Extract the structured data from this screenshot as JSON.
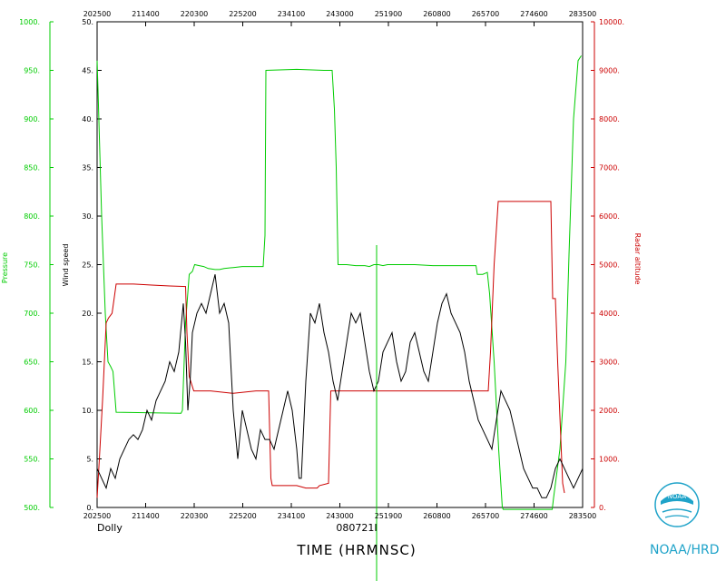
{
  "chart_data": {
    "type": "line",
    "xlabel": "TIME (HRMNSC)",
    "storm_name": "Dolly",
    "flight_id": "080721I",
    "x_ticks_bottom": [
      "202500",
      "211400",
      "220300",
      "225200",
      "234100",
      "243000",
      "251900",
      "260800",
      "265700",
      "274600",
      "283500"
    ],
    "x_ticks_top": [
      "202500",
      "211400",
      "220300",
      "225200",
      "234100",
      "243000",
      "251900",
      "260800",
      "265700",
      "274600",
      "283500"
    ],
    "y_left_inner": {
      "label": "Wind speed",
      "ylim": [
        0,
        50
      ],
      "ticks": [
        "0.",
        "5.",
        "10.",
        "15.",
        "20.",
        "25.",
        "30.",
        "35.",
        "40.",
        "45.",
        "50."
      ]
    },
    "y_left_outer": {
      "label": "Pressure",
      "ylim": [
        500,
        1000
      ],
      "ticks": [
        "500.",
        "550.",
        "600.",
        "650.",
        "700.",
        "750.",
        "800.",
        "850.",
        "900.",
        "950.",
        "1000."
      ]
    },
    "y_right": {
      "label": "Radar altitude",
      "ylim": [
        0,
        10000
      ],
      "ticks": [
        "0.",
        "1000.",
        "2000.",
        "3000.",
        "4000.",
        "5000.",
        "6000.",
        "7000.",
        "8000.",
        "9000.",
        "10000."
      ]
    },
    "series": [
      {
        "name": "Pressure",
        "color": "#00cc00",
        "points": [
          [
            0,
            960
          ],
          [
            0.2,
            930
          ],
          [
            1,
            800
          ],
          [
            1.8,
            700
          ],
          [
            2.4,
            650
          ],
          [
            3,
            645
          ],
          [
            3.5,
            640
          ],
          [
            4.2,
            598
          ],
          [
            18.5,
            597
          ],
          [
            18.8,
            600
          ],
          [
            19.5,
            690
          ],
          [
            20.3,
            740
          ],
          [
            21,
            743
          ],
          [
            21.5,
            750
          ],
          [
            22.5,
            749
          ],
          [
            23.5,
            748
          ],
          [
            24.5,
            746
          ],
          [
            26,
            745
          ],
          [
            27,
            745
          ],
          [
            28,
            746
          ],
          [
            30,
            747
          ],
          [
            32,
            748
          ],
          [
            34,
            748
          ],
          [
            36.6,
            748
          ],
          [
            37,
            780
          ],
          [
            37.2,
            950
          ],
          [
            44,
            951
          ],
          [
            50,
            950
          ],
          [
            51.8,
            950
          ],
          [
            52.3,
            910
          ],
          [
            52.7,
            850
          ],
          [
            53.1,
            750
          ],
          [
            55,
            750
          ],
          [
            57,
            749
          ],
          [
            59,
            749
          ],
          [
            60,
            748
          ],
          [
            61,
            750
          ],
          [
            62,
            750
          ],
          [
            63,
            749
          ],
          [
            64,
            750
          ],
          [
            66,
            750
          ],
          [
            70,
            750
          ],
          [
            74,
            749
          ],
          [
            78,
            749
          ],
          [
            82,
            749
          ],
          [
            83.5,
            749
          ],
          [
            83.8,
            740
          ],
          [
            85,
            740
          ],
          [
            86,
            742
          ],
          [
            86.5,
            720
          ],
          [
            87.5,
            650
          ],
          [
            88.5,
            560
          ],
          [
            89.3,
            500
          ],
          [
            89.5,
            498
          ],
          [
            90,
            498
          ],
          [
            92,
            498
          ],
          [
            94,
            498
          ],
          [
            99,
            498
          ],
          [
            100.3,
            498
          ],
          [
            100.6,
            510
          ],
          [
            102,
            560
          ],
          [
            103.3,
            650
          ],
          [
            104,
            760
          ],
          [
            105,
            900
          ],
          [
            106,
            960
          ],
          [
            106.7,
            965
          ]
        ]
      },
      {
        "name": "Radar altitude",
        "color": "#cc0000",
        "points": [
          [
            0,
            200
          ],
          [
            0.5,
            1000
          ],
          [
            1.2,
            2200
          ],
          [
            2,
            3800
          ],
          [
            2.5,
            3900
          ],
          [
            3.3,
            4000
          ],
          [
            4.2,
            4600
          ],
          [
            8,
            4600
          ],
          [
            12,
            4580
          ],
          [
            16,
            4560
          ],
          [
            19.5,
            4550
          ],
          [
            19.8,
            3600
          ],
          [
            20.3,
            2700
          ],
          [
            21.3,
            2400
          ],
          [
            25,
            2400
          ],
          [
            30,
            2350
          ],
          [
            35,
            2400
          ],
          [
            37.8,
            2400
          ],
          [
            38.3,
            600
          ],
          [
            38.6,
            450
          ],
          [
            44,
            450
          ],
          [
            46,
            400
          ],
          [
            48.5,
            400
          ],
          [
            49,
            450
          ],
          [
            51,
            500
          ],
          [
            51.5,
            2400
          ],
          [
            55,
            2400
          ],
          [
            60,
            2400
          ],
          [
            66,
            2400
          ],
          [
            72,
            2400
          ],
          [
            78,
            2400
          ],
          [
            84,
            2400
          ],
          [
            86.2,
            2400
          ],
          [
            86.7,
            3200
          ],
          [
            87.5,
            5000
          ],
          [
            88.4,
            6300
          ],
          [
            88.5,
            6300
          ],
          [
            95,
            6300
          ],
          [
            99,
            6300
          ],
          [
            100,
            6300
          ],
          [
            100.4,
            4300
          ],
          [
            101,
            4300
          ],
          [
            101.5,
            3000
          ],
          [
            102.6,
            500
          ],
          [
            103,
            300
          ]
        ]
      },
      {
        "name": "Wind speed",
        "color": "#000000",
        "points": [
          [
            0,
            4
          ],
          [
            1,
            3
          ],
          [
            2,
            2
          ],
          [
            3,
            4
          ],
          [
            4,
            3
          ],
          [
            5,
            5
          ],
          [
            6,
            6
          ],
          [
            7,
            7
          ],
          [
            8,
            7.5
          ],
          [
            9,
            7
          ],
          [
            10,
            8
          ],
          [
            11,
            10
          ],
          [
            12,
            9
          ],
          [
            13,
            11
          ],
          [
            14,
            12
          ],
          [
            15,
            13
          ],
          [
            16,
            15
          ],
          [
            17,
            14
          ],
          [
            18,
            16
          ],
          [
            19,
            21
          ],
          [
            19.5,
            17
          ],
          [
            20,
            10
          ],
          [
            20.5,
            13
          ],
          [
            21,
            18
          ],
          [
            22,
            20
          ],
          [
            23,
            21
          ],
          [
            24,
            20
          ],
          [
            25,
            22
          ],
          [
            26,
            24
          ],
          [
            27,
            20
          ],
          [
            28,
            21
          ],
          [
            29,
            19
          ],
          [
            30,
            10
          ],
          [
            31,
            5
          ],
          [
            32,
            10
          ],
          [
            33,
            8
          ],
          [
            34,
            6
          ],
          [
            35,
            5
          ],
          [
            36,
            8
          ],
          [
            37,
            7
          ],
          [
            38,
            7
          ],
          [
            39,
            6
          ],
          [
            40,
            8
          ],
          [
            41,
            10
          ],
          [
            42,
            12
          ],
          [
            43,
            10
          ],
          [
            44,
            6
          ],
          [
            44.5,
            3
          ],
          [
            45,
            3
          ],
          [
            46,
            13
          ],
          [
            47,
            20
          ],
          [
            48,
            19
          ],
          [
            49,
            21
          ],
          [
            50,
            18
          ],
          [
            51,
            16
          ],
          [
            52,
            13
          ],
          [
            53,
            11
          ],
          [
            54,
            14
          ],
          [
            55,
            17
          ],
          [
            56,
            20
          ],
          [
            57,
            19
          ],
          [
            58,
            20
          ],
          [
            59,
            17
          ],
          [
            60,
            14
          ],
          [
            61,
            12
          ],
          [
            62,
            13
          ],
          [
            63,
            16
          ],
          [
            64,
            17
          ],
          [
            65,
            18
          ],
          [
            66,
            15
          ],
          [
            67,
            13
          ],
          [
            68,
            14
          ],
          [
            69,
            17
          ],
          [
            70,
            18
          ],
          [
            71,
            16
          ],
          [
            72,
            14
          ],
          [
            73,
            13
          ],
          [
            74,
            16
          ],
          [
            75,
            19
          ],
          [
            76,
            21
          ],
          [
            77,
            22
          ],
          [
            78,
            20
          ],
          [
            79,
            19
          ],
          [
            80,
            18
          ],
          [
            81,
            16
          ],
          [
            82,
            13
          ],
          [
            83,
            11
          ],
          [
            84,
            9
          ],
          [
            85,
            8
          ],
          [
            86,
            7
          ],
          [
            87,
            6
          ],
          [
            88,
            9
          ],
          [
            89,
            12
          ],
          [
            90,
            11
          ],
          [
            91,
            10
          ],
          [
            92,
            8
          ],
          [
            93,
            6
          ],
          [
            94,
            4
          ],
          [
            95,
            3
          ],
          [
            96,
            2
          ],
          [
            97,
            2
          ],
          [
            98,
            1
          ],
          [
            99,
            1
          ],
          [
            100,
            2
          ],
          [
            101,
            4
          ],
          [
            102,
            5
          ],
          [
            103,
            4
          ],
          [
            104,
            3
          ],
          [
            105,
            2
          ],
          [
            106,
            3
          ],
          [
            107,
            4
          ]
        ]
      }
    ],
    "marker_vertical": {
      "color": "#00cc00"
    }
  },
  "branding": {
    "logo_text": "NOAA",
    "org_label": "NOAA/HRD"
  }
}
